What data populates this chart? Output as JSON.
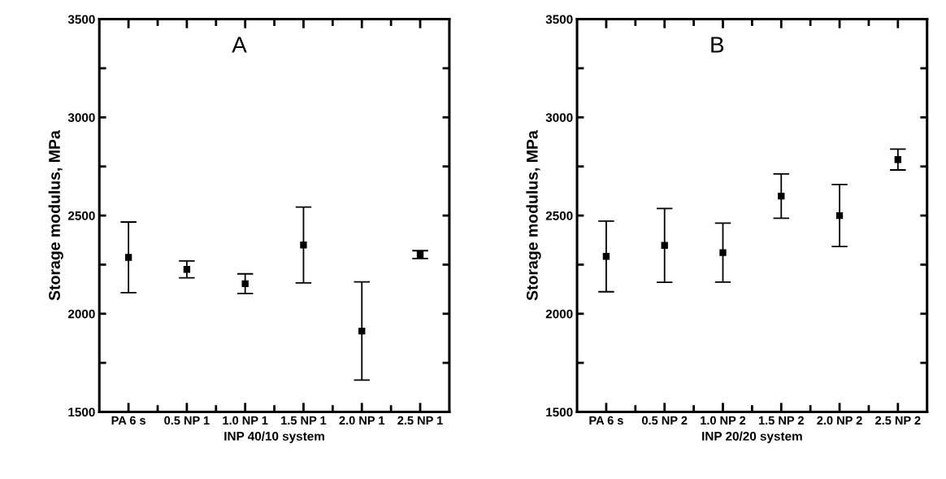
{
  "chart_data": [
    {
      "type": "scatter",
      "title": "A",
      "xlabel": "INP 40/10 system",
      "ylabel": "Storage modulus, MPa",
      "categories": [
        "PA 6 s",
        "0.5 NP 1",
        "1.0 NP 1",
        "1.5 NP 1",
        "2.0 NP 1",
        "2.5 NP 1"
      ],
      "series": [
        {
          "color": "#000000",
          "values": [
            2287,
            2226,
            2153,
            2350,
            1912,
            2301
          ],
          "errors": [
            180,
            43,
            50,
            193,
            250,
            20
          ]
        }
      ],
      "ylim": [
        1500,
        3500
      ],
      "yticks": [
        1500,
        {
          "value": 1750,
          "label": null
        },
        2000,
        {
          "value": 2250,
          "label": null
        },
        2500,
        {
          "value": 2750,
          "label": null
        },
        3000,
        {
          "value": 3250,
          "label": null
        },
        3500
      ],
      "marker": "square",
      "grid": false,
      "legend": false
    },
    {
      "type": "scatter",
      "title": "B",
      "xlabel": "INP 20/20 system",
      "ylabel": "Storage modulus, MPa",
      "categories": [
        "PA 6 s",
        "0.5 NP 2",
        "1.0 NP 2",
        "1.5 NP 2",
        "2.0 NP 2",
        "2.5 NP 2"
      ],
      "series": [
        {
          "color": "#000000",
          "values": [
            2292,
            2348,
            2311,
            2599,
            2500,
            2785
          ],
          "errors": [
            180,
            188,
            150,
            113,
            158,
            53
          ]
        }
      ],
      "ylim": [
        1500,
        3500
      ],
      "yticks": [
        1500,
        {
          "value": 1750,
          "label": null
        },
        2000,
        {
          "value": 2250,
          "label": null
        },
        2500,
        {
          "value": 2750,
          "label": null
        },
        3000,
        {
          "value": 3250,
          "label": null
        },
        3500
      ],
      "marker": "square",
      "grid": false,
      "legend": false
    }
  ]
}
